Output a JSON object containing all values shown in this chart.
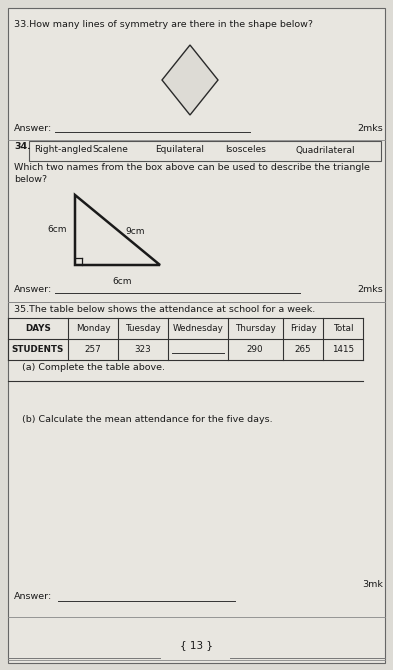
{
  "page_bg": "#dddbd5",
  "inner_bg": "#e8e6e0",
  "text_color": "#1a1a1a",
  "border_color": "#666666",
  "line_color": "#333333",
  "q33_text": "33.How many lines of symmetry are there in the shape below?",
  "q34_number": "34.",
  "q34_box_words": [
    "Right-angled",
    "Scalene",
    "Equilateral",
    "Isosceles",
    "Quadrilateral"
  ],
  "q34_question": "Which two names from the box above can be used to describe the triangle",
  "q34_question2": "below?",
  "q35_text": "35.The table below shows the attendance at school for a week.",
  "table_headers": [
    "DAYS",
    "Monday",
    "Tuesday",
    "Wednesday",
    "Thursday",
    "Friday",
    "Total"
  ],
  "table_row_label": "STUDENTS",
  "table_values": [
    "257",
    "323",
    "",
    "290",
    "265",
    "1415"
  ],
  "q35a_text": "(a) Complete the table above.",
  "q35b_text": "(b) Calculate the mean attendance for the five days.",
  "answer_text": "Answer:",
  "marks_2": "2mks",
  "marks_3": "3mk",
  "page_number": "13",
  "tri_left": "6cm",
  "tri_hyp": "9cm",
  "tri_bottom": "6cm",
  "diamond_edge": "#2a2a2a",
  "diamond_fill": "#dddbd5"
}
